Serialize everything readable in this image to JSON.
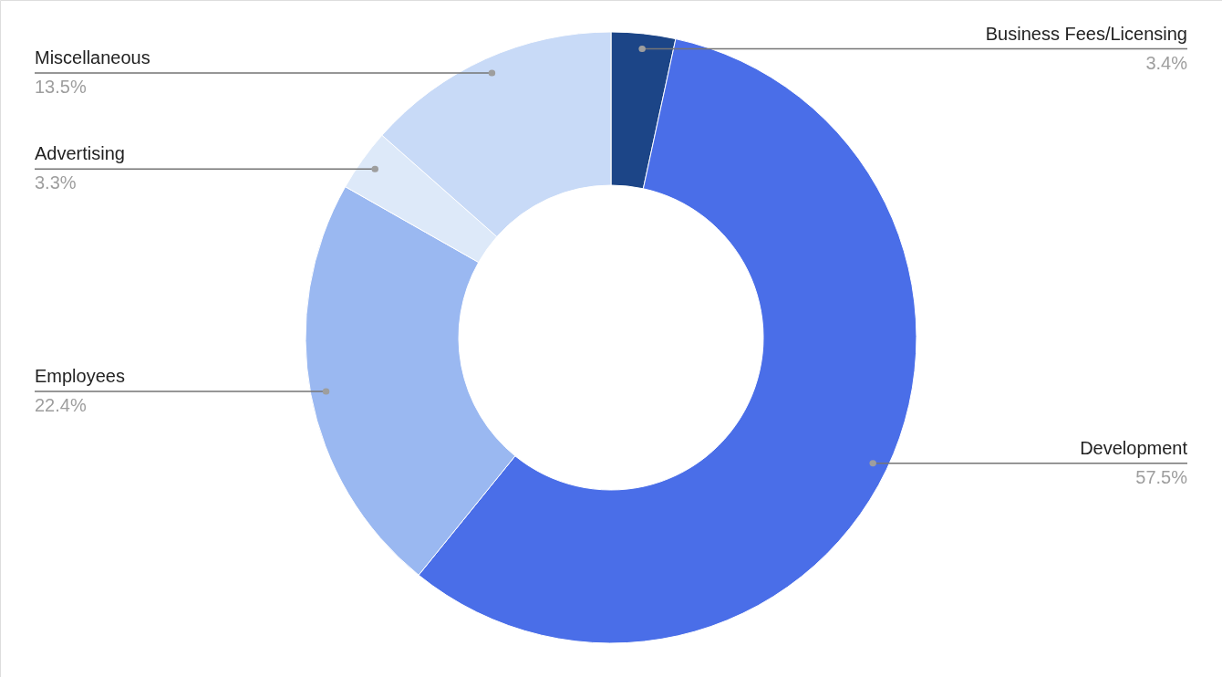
{
  "chart_data": {
    "type": "donut",
    "categories": [
      "Business Fees/Licensing",
      "Development",
      "Employees",
      "Advertising",
      "Miscellaneous"
    ],
    "values": [
      3.4,
      57.5,
      22.4,
      3.3,
      13.5
    ],
    "value_labels": [
      "3.4%",
      "57.5%",
      "22.4%",
      "3.3%",
      "13.5%"
    ],
    "colors": [
      "#1c4587",
      "#4a6ee8",
      "#9ab8f1",
      "#dde9f9",
      "#c8daf7"
    ]
  }
}
